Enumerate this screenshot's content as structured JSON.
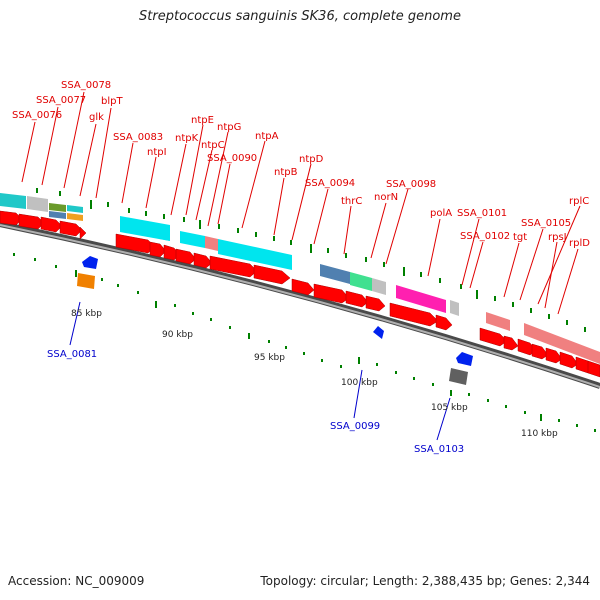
{
  "title": "Streptococcus sanguinis SK36, complete genome",
  "footer": {
    "accession": "Accession: NC_009009",
    "topology": "Topology: circular; Length: 2,388,435 bp; Genes: 2,344"
  },
  "colors": {
    "forward_label": "#e00000",
    "reverse_label": "#0000cc",
    "cds": "#ff0000",
    "backbone": "#808080",
    "tick": "#008000"
  },
  "kbp_ticks": [
    "85 kbp",
    "90 kbp",
    "95 kbp",
    "100 kbp",
    "105 kbp",
    "110 kbp"
  ],
  "forward_labels": [
    "SSA_0078",
    "SSA_0077",
    "blpT",
    "SSA_0076",
    "glk",
    "ntpE",
    "SSA_0083",
    "ntpG",
    "ntpK",
    "ntpA",
    "ntpI",
    "ntpC",
    "SSA_0090",
    "ntpD",
    "ntpB",
    "SSA_0094",
    "SSA_0098",
    "norN",
    "thrC",
    "polA",
    "SSA_0101",
    "SSA_0105",
    "rplC",
    "SSA_0102",
    "tgt",
    "rpsJ",
    "rplD"
  ],
  "reverse_labels": [
    "SSA_0081",
    "SSA_0099",
    "SSA_0103"
  ]
}
